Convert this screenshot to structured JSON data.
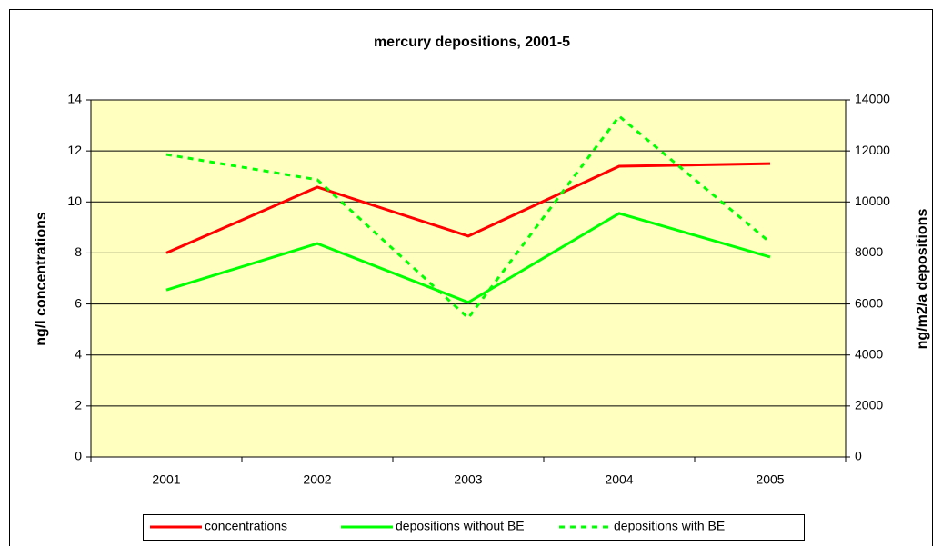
{
  "chart_data": {
    "type": "line",
    "title": "mercury depositions, 2001-5",
    "categories": [
      "2001",
      "2002",
      "2003",
      "2004",
      "2005"
    ],
    "series": [
      {
        "name": "concentrations",
        "color": "#ff0000",
        "line_style": "solid",
        "axis": "y",
        "values": [
          8.0,
          10.58,
          8.66,
          11.4,
          11.5
        ]
      },
      {
        "name": "depositions without BE",
        "color": "#00ff00",
        "line_style": "solid",
        "axis": "y2",
        "values": [
          6550,
          8370,
          6060,
          9550,
          7840
        ]
      },
      {
        "name": "depositions with BE",
        "color": "#00ff00",
        "line_style": "dashed",
        "axis": "y2",
        "values": [
          11860,
          10870,
          5450,
          13360,
          8410
        ]
      }
    ],
    "ylabel": "ng/l concentrations",
    "y2label": "ng/m2/a depositions",
    "ylim": [
      0,
      14
    ],
    "yticks": [
      0,
      2,
      4,
      6,
      8,
      10,
      12,
      14
    ],
    "y2lim": [
      0,
      14000
    ],
    "y2ticks": [
      0,
      2000,
      4000,
      6000,
      8000,
      10000,
      12000,
      14000
    ],
    "grid": true,
    "legend": "bottom",
    "plot_background": "#ffffc0"
  }
}
